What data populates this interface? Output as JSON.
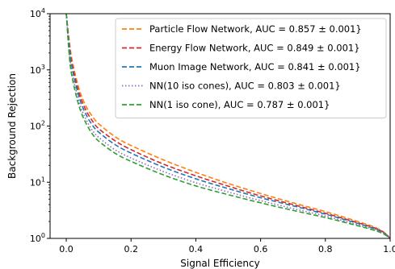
{
  "chart_data": {
    "type": "line",
    "title": "",
    "xlabel": "Signal Efficiency",
    "ylabel": "Background Rejection",
    "xlim": [
      -0.05,
      1.0
    ],
    "ylim": [
      1,
      10000
    ],
    "yscale": "log",
    "grid": false,
    "legend_position": "top-right",
    "x_ticks": [
      {
        "value": 0.0,
        "label": "0.0"
      },
      {
        "value": 0.2,
        "label": "0.2"
      },
      {
        "value": 0.4,
        "label": "0.4"
      },
      {
        "value": 0.6,
        "label": "0.6"
      },
      {
        "value": 0.8,
        "label": "0.8"
      },
      {
        "value": 1.0,
        "label": "1.0"
      }
    ],
    "y_ticks": [
      {
        "value": 1,
        "base": "10",
        "exp": "0"
      },
      {
        "value": 10,
        "base": "10",
        "exp": "1"
      },
      {
        "value": 100,
        "base": "10",
        "exp": "2"
      },
      {
        "value": 1000,
        "base": "10",
        "exp": "3"
      },
      {
        "value": 10000,
        "base": "10",
        "exp": "4"
      }
    ],
    "series": [
      {
        "name": "Particle Flow Network, AUC = 0.857 ± 0.001}",
        "color": "#ff7f0e",
        "style": "dashed",
        "x": [
          0.0,
          0.01,
          0.02,
          0.04,
          0.06,
          0.08,
          0.1,
          0.15,
          0.2,
          0.3,
          0.4,
          0.5,
          0.6,
          0.7,
          0.8,
          0.9,
          0.95,
          0.98,
          1.0
        ],
        "y": [
          10000,
          3000,
          1300,
          450,
          230,
          150,
          110,
          65,
          45,
          25,
          15,
          9.5,
          6.3,
          4.3,
          3.0,
          2.0,
          1.6,
          1.3,
          1.0
        ]
      },
      {
        "name": "Energy Flow Network, AUC = 0.849 ± 0.001}",
        "color": "#d62728",
        "style": "dashed",
        "x": [
          0.0,
          0.01,
          0.02,
          0.04,
          0.06,
          0.08,
          0.1,
          0.15,
          0.2,
          0.3,
          0.4,
          0.5,
          0.6,
          0.7,
          0.8,
          0.9,
          0.95,
          0.98,
          1.0
        ],
        "y": [
          10000,
          2600,
          1100,
          380,
          195,
          125,
          90,
          55,
          38,
          21,
          13,
          8.5,
          5.7,
          4.0,
          2.8,
          1.9,
          1.55,
          1.28,
          1.0
        ]
      },
      {
        "name": "Muon Image Network, AUC = 0.841 ± 0.001}",
        "color": "#1f77b4",
        "style": "dashed",
        "x": [
          0.0,
          0.01,
          0.02,
          0.04,
          0.06,
          0.08,
          0.1,
          0.15,
          0.2,
          0.3,
          0.4,
          0.5,
          0.6,
          0.7,
          0.8,
          0.9,
          0.95,
          0.98,
          1.0
        ],
        "y": [
          10000,
          2300,
          950,
          320,
          165,
          105,
          78,
          47,
          33,
          18.5,
          11.5,
          7.7,
          5.3,
          3.8,
          2.7,
          1.85,
          1.5,
          1.25,
          1.0
        ]
      },
      {
        "name": "NN(10 iso cones), AUC = 0.803 ± 0.001}",
        "color": "#9467bd",
        "style": "dotted",
        "x": [
          0.0,
          0.01,
          0.02,
          0.04,
          0.06,
          0.08,
          0.1,
          0.15,
          0.2,
          0.3,
          0.4,
          0.5,
          0.6,
          0.7,
          0.8,
          0.9,
          0.95,
          0.98,
          1.0
        ],
        "y": [
          10000,
          1900,
          780,
          260,
          135,
          85,
          63,
          38,
          27,
          15.5,
          9.8,
          6.7,
          4.7,
          3.4,
          2.5,
          1.75,
          1.45,
          1.22,
          1.0
        ]
      },
      {
        "name": "NN(1 iso cone), AUC = 0.787 ± 0.001}",
        "color": "#2ca02c",
        "style": "dashed",
        "x": [
          0.0,
          0.01,
          0.02,
          0.04,
          0.06,
          0.08,
          0.1,
          0.15,
          0.2,
          0.3,
          0.4,
          0.5,
          0.6,
          0.7,
          0.8,
          0.9,
          0.95,
          0.98,
          1.0
        ],
        "y": [
          10000,
          1600,
          650,
          220,
          115,
          73,
          54,
          33,
          23.5,
          13.5,
          8.6,
          6.0,
          4.3,
          3.15,
          2.35,
          1.68,
          1.4,
          1.2,
          1.0
        ]
      }
    ]
  }
}
